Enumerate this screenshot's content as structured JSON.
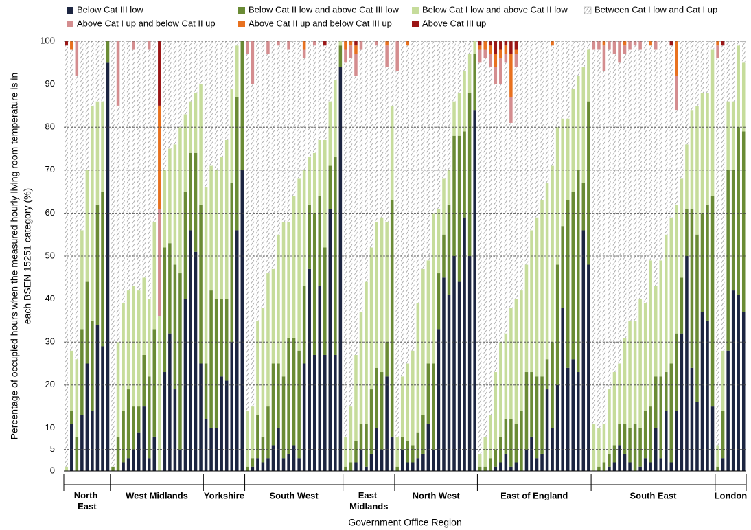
{
  "chart_data": {
    "type": "stacked_bar",
    "xlabel": "Government Office Region",
    "ylabel": [
      "Percentage of occupied hours when the measured hourly living room temperature is in",
      "each BSEN 15251 category (%)"
    ],
    "ylim": [
      0,
      100
    ],
    "yticks": [
      0,
      5,
      10,
      20,
      30,
      40,
      50,
      60,
      70,
      80,
      90,
      100
    ],
    "grid": true,
    "legend": "top",
    "categories": [
      "North East",
      "North East",
      "North East",
      "North East",
      "North East",
      "North East",
      "North East",
      "North East",
      "North East",
      "West Midlands",
      "West Midlands",
      "West Midlands",
      "West Midlands",
      "West Midlands",
      "West Midlands",
      "West Midlands",
      "West Midlands",
      "West Midlands",
      "West Midlands",
      "West Midlands",
      "West Midlands",
      "West Midlands",
      "West Midlands",
      "West Midlands",
      "West Midlands",
      "West Midlands",
      "West Midlands",
      "Yorkshire",
      "Yorkshire",
      "Yorkshire",
      "Yorkshire",
      "Yorkshire",
      "Yorkshire",
      "Yorkshire",
      "Yorkshire",
      "South West",
      "South West",
      "South West",
      "South West",
      "South West",
      "South West",
      "South West",
      "South West",
      "South West",
      "South West",
      "South West",
      "South West",
      "South West",
      "South West",
      "South West",
      "South West",
      "South West",
      "South West",
      "South West",
      "East Midlands",
      "East Midlands",
      "East Midlands",
      "East Midlands",
      "East Midlands",
      "East Midlands",
      "East Midlands",
      "East Midlands",
      "East Midlands",
      "East Midlands",
      "North West",
      "North West",
      "North West",
      "North West",
      "North West",
      "North West",
      "North West",
      "North West",
      "North West",
      "North West",
      "North West",
      "North West",
      "North West",
      "North West",
      "North West",
      "North West",
      "East of England",
      "East of England",
      "East of England",
      "East of England",
      "East of England",
      "East of England",
      "East of England",
      "East of England",
      "East of England",
      "East of England",
      "East of England",
      "East of England",
      "East of England",
      "East of England",
      "East of England",
      "East of England",
      "East of England",
      "East of England",
      "East of England",
      "East of England",
      "East of England",
      "East of England",
      "South East",
      "South East",
      "South East",
      "South East",
      "South East",
      "South East",
      "South East",
      "South East",
      "South East",
      "South East",
      "South East",
      "South East",
      "South East",
      "South East",
      "South East",
      "South East",
      "South East",
      "South East",
      "South East",
      "South East",
      "South East",
      "South East",
      "South East",
      "South East",
      "London",
      "London",
      "London",
      "London",
      "London",
      "London"
    ],
    "series": [
      {
        "name": "Below Cat III low",
        "color": "#1c2541",
        "values": [
          0,
          11,
          0,
          13,
          25,
          14,
          34,
          29,
          95,
          0,
          0,
          2,
          3,
          5,
          9,
          15,
          3,
          8,
          0,
          23,
          32,
          19,
          5,
          40,
          56,
          51,
          25,
          12,
          10,
          10,
          22,
          21,
          30,
          56,
          70,
          0,
          1,
          3,
          2,
          3,
          6,
          10,
          3,
          4,
          6,
          3,
          25,
          47,
          27,
          43,
          27,
          61,
          27,
          94,
          0,
          0,
          2,
          5,
          1,
          4,
          10,
          5,
          22,
          8,
          0,
          5,
          2,
          2,
          3,
          4,
          11,
          5,
          33,
          45,
          41,
          50,
          44,
          59,
          50,
          84,
          0,
          0,
          0,
          1,
          2,
          4,
          1,
          2,
          0,
          5,
          8,
          3,
          4,
          19,
          10,
          20,
          38,
          24,
          26,
          23,
          56,
          48,
          0,
          0,
          0,
          1,
          2,
          6,
          4,
          2,
          0,
          1,
          3,
          2,
          10,
          3,
          14,
          2,
          14,
          32,
          50,
          24,
          16,
          37,
          35,
          15,
          0,
          3,
          28,
          42,
          41,
          37
        ]
      },
      {
        "name": "Below Cat II low and above Cat III low",
        "color": "#6a8b35",
        "values": [
          0,
          3,
          8,
          20,
          19,
          21,
          28,
          36,
          5,
          1,
          8,
          12,
          16,
          10,
          6,
          12,
          19,
          25,
          0,
          29,
          21,
          29,
          41,
          25,
          18,
          23,
          37,
          13,
          32,
          30,
          18,
          19,
          37,
          31,
          30,
          1,
          2,
          10,
          6,
          12,
          19,
          15,
          19,
          27,
          25,
          25,
          18,
          15,
          33,
          21,
          25,
          10,
          46,
          5,
          1,
          2,
          5,
          6,
          10,
          15,
          14,
          18,
          8,
          55,
          1,
          3,
          5,
          4,
          6,
          9,
          14,
          20,
          13,
          10,
          21,
          28,
          34,
          20,
          38,
          13,
          1,
          1,
          3,
          4,
          6,
          8,
          11,
          9,
          14,
          18,
          15,
          19,
          18,
          7,
          20,
          28,
          19,
          39,
          39,
          47,
          11,
          38,
          0,
          1,
          2,
          3,
          4,
          5,
          7,
          8,
          11,
          9,
          11,
          13,
          12,
          19,
          9,
          23,
          18,
          13,
          11,
          37,
          39,
          23,
          27,
          49,
          1,
          11,
          42,
          28,
          39,
          42
        ]
      },
      {
        "name": "Below Cat I low and above Cat II low",
        "color": "#c6dc9b",
        "values": [
          1,
          14,
          18,
          23,
          26,
          50,
          24,
          21,
          0,
          0,
          22,
          25,
          23,
          28,
          27,
          18,
          18,
          25,
          36,
          18,
          22,
          28,
          34,
          18,
          12,
          14,
          28,
          41,
          29,
          30,
          33,
          37,
          22,
          12,
          0,
          13,
          12,
          22,
          30,
          31,
          22,
          30,
          36,
          27,
          33,
          40,
          27,
          11,
          14,
          13,
          25,
          15,
          18,
          1,
          7,
          13,
          20,
          26,
          33,
          33,
          34,
          36,
          28,
          22,
          7,
          14,
          18,
          22,
          30,
          34,
          24,
          35,
          15,
          13,
          8,
          8,
          10,
          14,
          9,
          3,
          3,
          7,
          10,
          18,
          22,
          20,
          26,
          29,
          28,
          25,
          33,
          37,
          41,
          41,
          41,
          32,
          25,
          19,
          24,
          22,
          27,
          12,
          11,
          9,
          9,
          15,
          17,
          14,
          20,
          25,
          24,
          30,
          25,
          34,
          21,
          27,
          32,
          34,
          30,
          23,
          15,
          23,
          30,
          28,
          26,
          34,
          5,
          14,
          16,
          16,
          19,
          16
        ]
      },
      {
        "name": "Between Cat I low and Cat I up",
        "color": "#9a9a9a",
        "pattern": "hatch",
        "values": [
          98,
          70,
          66,
          44,
          30,
          15,
          14,
          14,
          0,
          99,
          55,
          61,
          58,
          55,
          58,
          55,
          58,
          42,
          0,
          30,
          25,
          24,
          20,
          17,
          14,
          12,
          10,
          34,
          29,
          30,
          27,
          23,
          11,
          1,
          0,
          83,
          75,
          65,
          62,
          51,
          53,
          44,
          42,
          40,
          36,
          32,
          26,
          27,
          25,
          23,
          22,
          14,
          9,
          0,
          87,
          81,
          65,
          61,
          56,
          48,
          41,
          41,
          36,
          15,
          85,
          78,
          74,
          72,
          61,
          53,
          51,
          40,
          39,
          32,
          30,
          14,
          12,
          7,
          3,
          0,
          91,
          88,
          81,
          67,
          60,
          63,
          43,
          54,
          58,
          52,
          44,
          41,
          37,
          33,
          28,
          20,
          18,
          18,
          11,
          8,
          6,
          2,
          87,
          88,
          82,
          79,
          74,
          70,
          66,
          63,
          64,
          58,
          61,
          50,
          55,
          51,
          45,
          40,
          22,
          32,
          24,
          16,
          15,
          12,
          12,
          2,
          90,
          71,
          14,
          14,
          1,
          5
        ]
      },
      {
        "name": "Above Cat I up and below Cat II up",
        "color": "#d48d8f",
        "values": [
          0,
          0,
          8,
          0,
          0,
          0,
          0,
          0,
          0,
          0,
          15,
          0,
          0,
          2,
          0,
          0,
          2,
          0,
          25,
          0,
          0,
          0,
          0,
          0,
          0,
          0,
          0,
          0,
          0,
          0,
          0,
          0,
          0,
          0,
          0,
          3,
          10,
          0,
          0,
          3,
          0,
          1,
          0,
          2,
          0,
          0,
          2,
          0,
          1,
          0,
          0,
          0,
          0,
          0,
          3,
          3,
          5,
          2,
          0,
          0,
          1,
          0,
          5,
          0,
          7,
          0,
          0,
          0,
          0,
          0,
          0,
          0,
          0,
          0,
          0,
          0,
          0,
          0,
          0,
          0,
          3,
          2,
          3,
          4,
          6,
          2,
          6,
          3,
          0,
          0,
          0,
          0,
          0,
          0,
          0,
          0,
          0,
          0,
          0,
          0,
          0,
          0,
          2,
          2,
          6,
          2,
          3,
          5,
          2,
          2,
          1,
          2,
          0,
          0,
          2,
          0,
          0,
          0,
          8,
          0,
          0,
          0,
          0,
          0,
          0,
          0,
          3,
          0,
          0,
          0,
          0,
          0
        ]
      },
      {
        "name": "Above Cat II up and below Cat III up",
        "color": "#e8711f",
        "values": [
          0,
          2,
          0,
          0,
          0,
          0,
          0,
          0,
          0,
          0,
          0,
          0,
          0,
          0,
          0,
          0,
          0,
          0,
          24,
          0,
          0,
          0,
          0,
          0,
          0,
          0,
          0,
          0,
          0,
          0,
          0,
          0,
          0,
          0,
          0,
          0,
          0,
          0,
          0,
          0,
          0,
          0,
          0,
          0,
          0,
          0,
          2,
          0,
          0,
          0,
          0,
          0,
          0,
          0,
          2,
          1,
          2,
          0,
          0,
          0,
          0,
          0,
          1,
          0,
          0,
          0,
          1,
          0,
          0,
          0,
          0,
          0,
          0,
          0,
          0,
          0,
          0,
          0,
          0,
          0,
          1,
          2,
          2,
          3,
          2,
          2,
          10,
          1,
          0,
          0,
          0,
          0,
          0,
          0,
          1,
          0,
          0,
          0,
          0,
          0,
          0,
          0,
          0,
          0,
          1,
          0,
          0,
          0,
          1,
          0,
          0,
          0,
          0,
          1,
          0,
          0,
          0,
          0,
          8,
          0,
          0,
          0,
          0,
          0,
          0,
          0,
          1,
          0,
          0,
          0,
          0,
          0
        ]
      },
      {
        "name": "Above Cat III up",
        "color": "#9b1616",
        "values": [
          1,
          0,
          0,
          0,
          0,
          0,
          0,
          0,
          0,
          0,
          0,
          0,
          0,
          0,
          0,
          0,
          0,
          0,
          15,
          0,
          0,
          0,
          0,
          0,
          0,
          0,
          0,
          0,
          0,
          0,
          0,
          0,
          0,
          0,
          0,
          0,
          0,
          0,
          0,
          0,
          0,
          0,
          0,
          0,
          0,
          0,
          0,
          0,
          0,
          0,
          1,
          0,
          0,
          0,
          0,
          0,
          1,
          0,
          0,
          0,
          0,
          0,
          0,
          0,
          0,
          0,
          0,
          0,
          0,
          0,
          0,
          0,
          0,
          0,
          0,
          0,
          0,
          0,
          0,
          0,
          1,
          0,
          1,
          3,
          2,
          1,
          3,
          2,
          0,
          0,
          0,
          0,
          0,
          0,
          0,
          0,
          0,
          0,
          0,
          0,
          0,
          0,
          0,
          0,
          0,
          0,
          0,
          0,
          0,
          0,
          0,
          0,
          0,
          0,
          0,
          0,
          0,
          1,
          0,
          0,
          0,
          0,
          0,
          0,
          0,
          0,
          0,
          1,
          0,
          0,
          0,
          0
        ]
      }
    ]
  }
}
